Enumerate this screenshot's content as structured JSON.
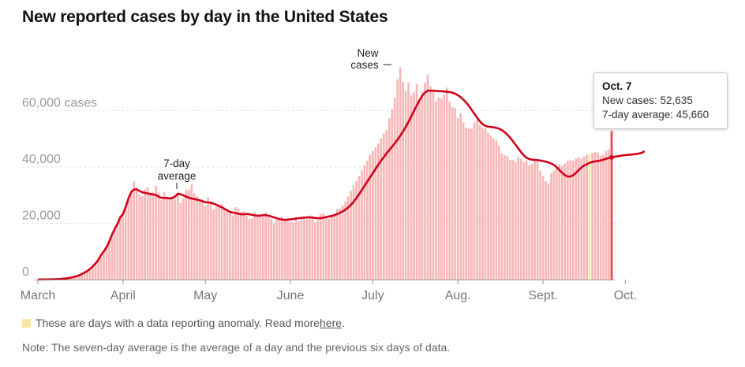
{
  "title": "New reported cases by day in the United States",
  "legend": {
    "anomaly_text": "These are days with a data reporting anomaly. Read more ",
    "link_text": "here",
    "after_link": "."
  },
  "note": "Note: The seven-day average is the average of a day and the previous six days of data.",
  "tooltip": {
    "date": "Oct. 7",
    "new_cases_label": "New cases: 52,635",
    "avg_label": "7-day average: 45,660"
  },
  "annotations": {
    "avg_line1": "7-day",
    "avg_line2": "average",
    "new_line1": "New",
    "new_line2": "cases"
  },
  "chart_data": {
    "type": "bar",
    "title": "New reported cases by day in the United States",
    "ylim": [
      0,
      75000
    ],
    "y_ticks": [
      {
        "value": 0,
        "label": "0"
      },
      {
        "value": 20000,
        "label": "20,000"
      },
      {
        "value": 40000,
        "label": "40,000"
      },
      {
        "value": 60000,
        "label": "60,000 cases"
      }
    ],
    "x_ticks": [
      {
        "label": "March",
        "day": 0
      },
      {
        "label": "April",
        "day": 31
      },
      {
        "label": "May",
        "day": 61
      },
      {
        "label": "June",
        "day": 92
      },
      {
        "label": "July",
        "day": 122
      },
      {
        "label": "Aug.",
        "day": 153
      },
      {
        "label": "Sept.",
        "day": 184
      },
      {
        "label": "Oct.",
        "day": 214
      }
    ],
    "grid": true,
    "colors": {
      "bar": "#f7b7b7",
      "anomaly": "#fbe6a6",
      "line": "#d0021b",
      "grid": "#e2e2e2",
      "axis": "#999999"
    },
    "series": [
      {
        "name": "New cases",
        "anomaly_days": [
          201
        ],
        "values": [
          30,
          30,
          40,
          50,
          60,
          80,
          100,
          150,
          200,
          300,
          400,
          500,
          700,
          900,
          1200,
          1500,
          2000,
          2500,
          3000,
          3800,
          4700,
          5700,
          7000,
          8700,
          10000,
          11500,
          13500,
          16000,
          18000,
          19800,
          22100,
          23300,
          25800,
          28800,
          31100,
          34900,
          32800,
          30400,
          29600,
          32000,
          32800,
          30800,
          31200,
          33300,
          30900,
          28200,
          31100,
          28900,
          28500,
          29400,
          28500,
          30800,
          27200,
          28700,
          31900,
          31900,
          33700,
          30700,
          29600,
          28600,
          28500,
          26200,
          29200,
          27700,
          25000,
          26000,
          26200,
          26800,
          25300,
          24400,
          24200,
          22800,
          25700,
          25300,
          24000,
          24300,
          22700,
          21500,
          21700,
          23900,
          22400,
          22400,
          22900,
          23800,
          22100,
          21500,
          20000,
          21300,
          21800,
          22300,
          21300,
          21400,
          20600,
          20300,
          21500,
          20700,
          21300,
          21700,
          22200,
          22800,
          22500,
          20300,
          21000,
          23300,
          23500,
          21900,
          21600,
          22500,
          23100,
          25100,
          25200,
          26300,
          27800,
          29500,
          31500,
          33400,
          34900,
          36800,
          38800,
          40600,
          42200,
          44400,
          45700,
          47000,
          48300,
          50200,
          51900,
          53200,
          57300,
          60600,
          64600,
          71200,
          75400,
          70200,
          67000,
          70000,
          65400,
          66500,
          69400,
          63500,
          66800,
          70000,
          72800,
          68700,
          67500,
          63400,
          64700,
          64300,
          65600,
          68200,
          63200,
          61300,
          60900,
          57400,
          59100,
          55900,
          54000,
          53800,
          53500,
          55800,
          56800,
          54800,
          53900,
          53700,
          52200,
          51100,
          50000,
          49400,
          47600,
          44800,
          44200,
          43900,
          42500,
          42500,
          41800,
          43600,
          42900,
          41700,
          42300,
          40600,
          41200,
          42100,
          41800,
          38700,
          36700,
          34900,
          34100,
          37800,
          38700,
          39800,
          40800,
          40500,
          41300,
          42200,
          42400,
          42200,
          43000,
          43500,
          43000,
          43800,
          44300,
          44300,
          45000,
          45300,
          45200,
          44000,
          44300,
          45700,
          46200,
          52635
        ],
        "average": [
          30,
          30,
          40,
          50,
          60,
          80,
          100,
          150,
          200,
          300,
          400,
          500,
          700,
          900,
          1200,
          1500,
          2000,
          2500,
          3000,
          3800,
          4700,
          5700,
          7000,
          8700,
          10000,
          11500,
          13500,
          16000,
          18000,
          19800,
          22100,
          23300,
          25800,
          28800,
          31100,
          32000,
          32000,
          31500,
          31000,
          30800,
          30600,
          30400,
          30200,
          30000,
          29500,
          29000,
          29000,
          29000,
          28800,
          29000,
          29500,
          30500,
          30300,
          29900,
          29400,
          29100,
          28800,
          28600,
          28400,
          28100,
          27800,
          27500,
          27400,
          27300,
          27000,
          26600,
          26100,
          25700,
          25100,
          24600,
          24000,
          23800,
          23600,
          23400,
          23200,
          23200,
          23300,
          23200,
          23000,
          22800,
          22700,
          22700,
          22900,
          22900,
          22700,
          22400,
          22100,
          21800,
          21500,
          21300,
          21200,
          21300,
          21400,
          21500,
          21700,
          21800,
          21900,
          22000,
          22100,
          22100,
          22000,
          21900,
          21800,
          21800,
          22000,
          22200,
          22400,
          22600,
          22900,
          23300,
          23700,
          24200,
          24800,
          25600,
          26500,
          27600,
          28900,
          30300,
          31800,
          33300,
          34800,
          36300,
          37800,
          39300,
          40800,
          42200,
          43500,
          44800,
          46000,
          47200,
          48400,
          49700,
          51100,
          52600,
          54200,
          56000,
          57900,
          59900,
          61800,
          63700,
          65300,
          66400,
          67100,
          67100,
          67100,
          67000,
          66900,
          66900,
          66800,
          66700,
          66600,
          66400,
          66000,
          65500,
          64800,
          63900,
          62900,
          61700,
          60300,
          58900,
          57500,
          56200,
          55200,
          54600,
          54300,
          54200,
          54100,
          53900,
          53600,
          53100,
          52400,
          51500,
          50400,
          49200,
          47900,
          46600,
          45300,
          44100,
          43300,
          42800,
          42600,
          42500,
          42400,
          42300,
          42100,
          41900,
          41600,
          41200,
          40700,
          39900,
          38900,
          37900,
          37100,
          36600,
          36600,
          37100,
          37900,
          38900,
          39800,
          40500,
          41000,
          41500,
          41800,
          42000,
          42100,
          42300,
          42600,
          42900,
          43200,
          43400,
          43600,
          43800,
          43900,
          44100,
          44200,
          44300,
          44400,
          44500,
          44600,
          44800,
          45000,
          45660
        ]
      }
    ]
  }
}
